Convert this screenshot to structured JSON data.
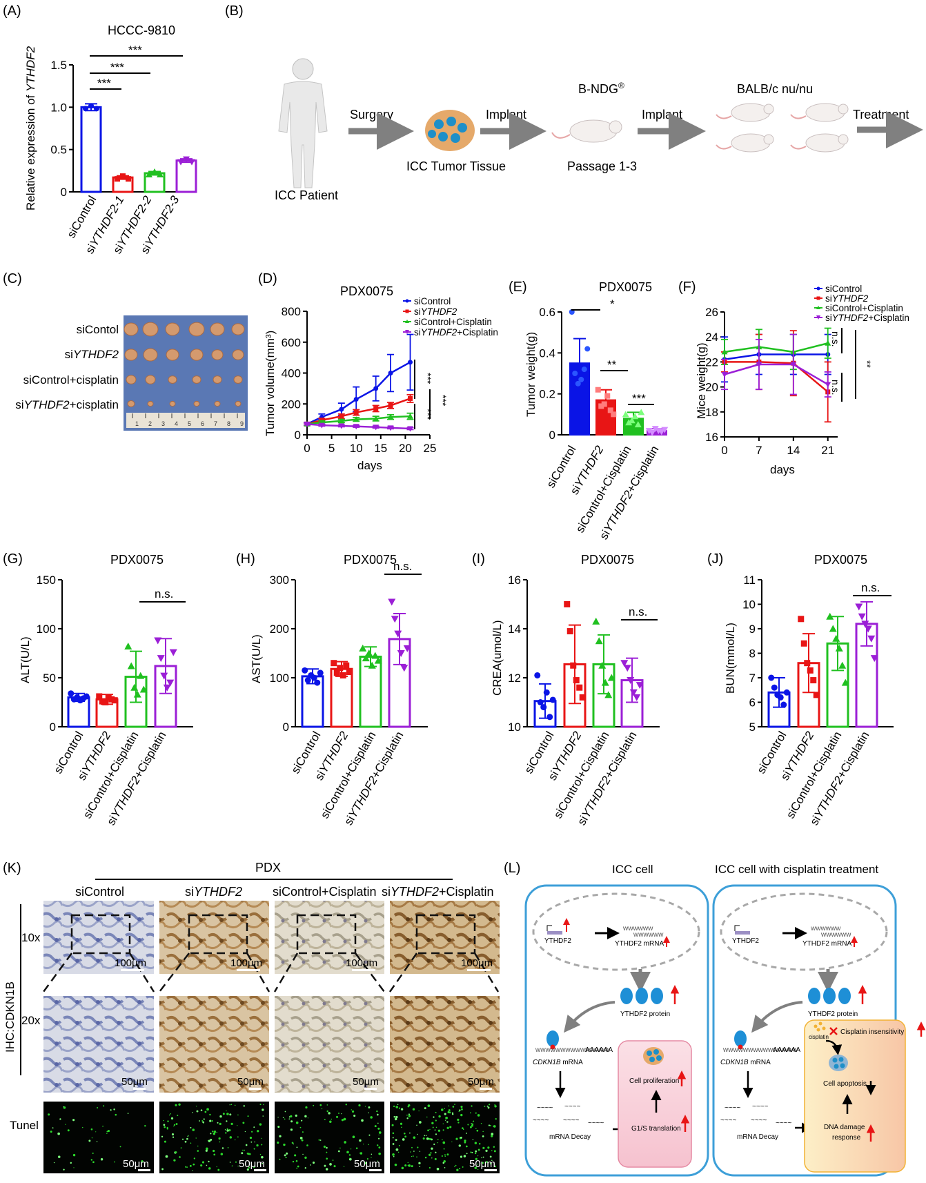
{
  "colors": {
    "blue": "#0a14e6",
    "red": "#e81515",
    "green": "#20c020",
    "purple": "#9b1fd6",
    "arrow": "#808080",
    "cell_border": "#3d9fd8",
    "apoptosis_fill": "#fdebc0",
    "apoptosis_border": "#f2b233",
    "pink": "#f8c8d4"
  },
  "panels": {
    "A": {
      "label": "(A)",
      "title": "HCCC-9810",
      "ylabel_pre": "Relative expression of ",
      "ylabel_it": "YTHDF2",
      "ytick_labels": [
        "0",
        "0.5",
        "1.0",
        "1.5"
      ],
      "sig": [
        "***",
        "***",
        "***"
      ],
      "cats": [
        {
          "pre": "siControl",
          "it": ""
        },
        {
          "pre": "si",
          "it": "YTHDF2-1"
        },
        {
          "pre": "si",
          "it": "YTHDF2-2"
        },
        {
          "pre": "si",
          "it": "YTHDF2-3"
        }
      ]
    },
    "B": {
      "label": "(B)",
      "patient": "ICC Patient",
      "surgery": "Surgery",
      "tissue": "ICC Tumor Tissue",
      "implant1": "Implant",
      "mouse1": "B-NDG",
      "mouse1_sup": "®",
      "passage": "Passage 1-3",
      "implant2": "Implant",
      "mouse2": "BALB/c nu/nu",
      "treatment": "Treatment"
    },
    "C": {
      "label": "(C)",
      "rows": [
        {
          "pre": "siContol",
          "it": "",
          "post": ""
        },
        {
          "pre": "si",
          "it": "YTHDF2",
          "post": ""
        },
        {
          "pre": "siControl+cisplatin",
          "it": "",
          "post": ""
        },
        {
          "pre": "si",
          "it": "YTHDF2",
          "post": "+cisplatin"
        }
      ],
      "ruler": [
        "1",
        "2",
        "3",
        "4",
        "5",
        "6",
        "7",
        "8",
        "9"
      ]
    },
    "D": {
      "label": "(D)",
      "title": "PDX0075",
      "ylabel": "Tumor volume(mm³)",
      "xlabel": "days",
      "xtick_labels": [
        "0",
        "5",
        "10",
        "15",
        "20",
        "25"
      ],
      "ytick_labels": [
        "0",
        "200",
        "400",
        "600",
        "800"
      ],
      "sig": [
        "***",
        "***",
        "***"
      ],
      "legend": [
        {
          "pre": "siControl",
          "it": "",
          "post": ""
        },
        {
          "pre": "si",
          "it": "YTHDF2",
          "post": ""
        },
        {
          "pre": "siControl+Cisplatin",
          "it": "",
          "post": ""
        },
        {
          "pre": "si",
          "it": "YTHDF2",
          "post": "+Cisplatin"
        }
      ]
    },
    "E": {
      "label": "(E)",
      "title": "PDX0075",
      "ylabel": "Tumor weight(g)",
      "ytick_labels": [
        "0",
        "0.2",
        "0.4",
        "0.6"
      ],
      "sig": [
        "*",
        "**",
        "***"
      ]
    },
    "F": {
      "label": "(F)",
      "ylabel": "Mice weight(g)",
      "xlabel": "days",
      "xtick_labels": [
        "0",
        "7",
        "14",
        "21"
      ],
      "ytick_labels": [
        "16",
        "18",
        "20",
        "22",
        "24",
        "26"
      ],
      "sig": [
        "n.s.",
        "n.s.",
        "**"
      ],
      "legend": [
        {
          "pre": "siControl",
          "it": "",
          "post": ""
        },
        {
          "pre": "si",
          "it": "YTHDF2",
          "post": ""
        },
        {
          "pre": "siControl+Cisplatin",
          "it": "",
          "post": ""
        },
        {
          "pre": "si",
          "it": "YTHDF2",
          "post": "+Cisplatin"
        }
      ]
    },
    "G": {
      "label": "(G)",
      "title": "PDX0075",
      "ylabel": "ALT(U/L)",
      "ytick_labels": [
        "0",
        "50",
        "100",
        "150"
      ],
      "sig": "n.s."
    },
    "H": {
      "label": "(H)",
      "title": "PDX0075",
      "ylabel": "AST(U/L)",
      "ytick_labels": [
        "0",
        "100",
        "200",
        "300"
      ],
      "sig": "n.s."
    },
    "I": {
      "label": "(I)",
      "title": "PDX0075",
      "ylabel": "CREA(umol/L)",
      "ytick_labels": [
        "10",
        "12",
        "14",
        "16"
      ],
      "sig": "n.s."
    },
    "J": {
      "label": "(J)",
      "title": "PDX0075",
      "ylabel": "BUN(mmol/L)",
      "ytick_labels": [
        "5",
        "6",
        "7",
        "8",
        "9",
        "10",
        "11"
      ],
      "sig": "n.s."
    },
    "group_cats": [
      {
        "pre": "siControl",
        "it": "",
        "post": ""
      },
      {
        "pre": "si",
        "it": "YTHDF2",
        "post": ""
      },
      {
        "pre": "siControl+Cisplatin",
        "it": "",
        "post": ""
      },
      {
        "pre": "si",
        "it": "YTHDF2",
        "post": "+Cisplatin"
      }
    ],
    "K": {
      "label": "(K)",
      "header": "PDX",
      "cols": [
        {
          "pre": "siControl",
          "it": "",
          "post": ""
        },
        {
          "pre": "si",
          "it": "YTHDF2",
          "post": ""
        },
        {
          "pre": "siControl+Cisplatin",
          "it": "",
          "post": ""
        },
        {
          "pre": "si",
          "it": "YTHDF2",
          "post": "+Cisplatin"
        }
      ],
      "side_label": "IHC:CDKN1B",
      "mag1": "10x",
      "mag2": "20x",
      "tunel": "Tunel",
      "scale1": "100μm",
      "scale2": "50μm",
      "scale3": "50μm"
    },
    "L": {
      "label": "(L)",
      "title1": "ICC cell",
      "title2": "ICC cell with cisplatin treatment",
      "gene": "YTHDF2",
      "mrna": "YTHDF2 mRNA",
      "protein": "YTHDF2 protein",
      "cdkn_it": "CDKN1B",
      "cdkn_post": " mRNA",
      "polya": "AAAAAA",
      "decay": "mRNA Decay",
      "proliferation": "Cell proliferation",
      "g1s": "G1/S translation",
      "cisplatin": "cisplatin",
      "insens": "Cisplatin insensitivity",
      "apoptosis": "Cell apoptosis",
      "dna1": "DNA damage",
      "dna2": "response"
    }
  },
  "chart_data": [
    {
      "panel": "A",
      "type": "bar",
      "categories": [
        "siControl",
        "siYTHDF2-1",
        "siYTHDF2-2",
        "siYTHDF2-3"
      ],
      "values": [
        1.0,
        0.17,
        0.22,
        0.37
      ],
      "errors": [
        0.04,
        0.02,
        0.02,
        0.02
      ],
      "colors": [
        "#0a14e6",
        "#e81515",
        "#20c020",
        "#9b1fd6"
      ],
      "ylim": [
        0,
        1.5
      ],
      "yticks": [
        0,
        0.5,
        1.0,
        1.5
      ]
    },
    {
      "panel": "D",
      "type": "line",
      "x": [
        0,
        3,
        7,
        10,
        14,
        17,
        21
      ],
      "xlim": [
        0,
        25
      ],
      "ylim": [
        0,
        800
      ],
      "xticks": [
        0,
        5,
        10,
        15,
        20,
        25
      ],
      "yticks": [
        0,
        200,
        400,
        600,
        800
      ],
      "series": [
        {
          "name": "siControl",
          "color": "#0a14e6",
          "values": [
            70,
            115,
            165,
            230,
            300,
            400,
            470
          ],
          "errors": [
            10,
            20,
            40,
            80,
            80,
            120,
            180
          ]
        },
        {
          "name": "siYTHDF2",
          "color": "#e81515",
          "values": [
            70,
            95,
            120,
            145,
            170,
            190,
            235
          ],
          "errors": [
            10,
            12,
            15,
            18,
            20,
            20,
            25
          ]
        },
        {
          "name": "siControl+Cisplatin",
          "color": "#20c020",
          "values": [
            70,
            80,
            90,
            100,
            105,
            115,
            120
          ],
          "errors": [
            8,
            10,
            10,
            12,
            15,
            15,
            20
          ]
        },
        {
          "name": "siYTHDF2+Cisplatin",
          "color": "#9b1fd6",
          "values": [
            70,
            62,
            58,
            55,
            50,
            45,
            40
          ],
          "errors": [
            6,
            6,
            6,
            6,
            6,
            6,
            6
          ]
        }
      ]
    },
    {
      "panel": "E",
      "type": "bar",
      "categories": [
        "siControl",
        "siYTHDF2",
        "siControl+Cisplatin",
        "siYTHDF2+Cisplatin"
      ],
      "values": [
        0.35,
        0.17,
        0.08,
        0.02
      ],
      "errors": [
        0.12,
        0.05,
        0.03,
        0.01
      ],
      "colors": [
        "#0a14e6",
        "#e81515",
        "#20c020",
        "#9b1fd6"
      ],
      "ylim": [
        0,
        0.6
      ],
      "yticks": [
        0,
        0.2,
        0.4,
        0.6
      ],
      "points": [
        [
          0.6,
          0.3,
          0.25,
          0.27,
          0.32,
          0.42
        ],
        [
          0.22,
          0.14,
          0.15,
          0.19,
          0.12,
          0.1
        ],
        [
          0.1,
          0.06,
          0.07,
          0.09,
          0.05,
          0.11
        ],
        [
          0.02,
          0.01,
          0.03,
          0.02,
          0.015,
          0.025
        ]
      ]
    },
    {
      "panel": "F",
      "type": "line",
      "x": [
        0,
        7,
        14,
        21
      ],
      "xlim": [
        0,
        23
      ],
      "ylim": [
        16,
        26
      ],
      "xticks": [
        0,
        7,
        14,
        21
      ],
      "yticks": [
        16,
        18,
        20,
        22,
        24,
        26
      ],
      "series": [
        {
          "name": "siControl",
          "color": "#0a14e6",
          "values": [
            22.2,
            22.6,
            22.6,
            22.6
          ],
          "errors": [
            1.8,
            1.6,
            1.6,
            1.6
          ]
        },
        {
          "name": "siYTHDF2",
          "color": "#e81515",
          "values": [
            22.0,
            22.0,
            21.9,
            19.6
          ],
          "errors": [
            0.8,
            2.2,
            2.6,
            2.4
          ]
        },
        {
          "name": "siControl+Cisplatin",
          "color": "#20c020",
          "values": [
            22.8,
            23.2,
            22.8,
            23.5
          ],
          "errors": [
            1.0,
            1.4,
            1.4,
            1.2
          ]
        },
        {
          "name": "siYTHDF2+Cisplatin",
          "color": "#9b1fd6",
          "values": [
            21.0,
            21.8,
            21.8,
            20.2
          ],
          "errors": [
            1.2,
            2.0,
            2.4,
            1.0
          ]
        }
      ]
    },
    {
      "panel": "G",
      "type": "bar",
      "categories": [
        "siControl",
        "siYTHDF2",
        "siControl+Cisplatin",
        "siYTHDF2+Cisplatin"
      ],
      "values": [
        30,
        28,
        51,
        62
      ],
      "errors": [
        4,
        5,
        26,
        28
      ],
      "ylim": [
        0,
        150
      ],
      "yticks": [
        0,
        50,
        100,
        150
      ],
      "points": [
        [
          34,
          28,
          30,
          27,
          29,
          31
        ],
        [
          31,
          26,
          25,
          30,
          28,
          27
        ],
        [
          82,
          62,
          40,
          33,
          52,
          38
        ],
        [
          88,
          70,
          52,
          40,
          45,
          76
        ]
      ]
    },
    {
      "panel": "H",
      "type": "bar",
      "categories": [
        "siControl",
        "siYTHDF2",
        "siControl+Cisplatin",
        "siYTHDF2+Cisplatin"
      ],
      "values": [
        103,
        118,
        143,
        179
      ],
      "errors": [
        15,
        15,
        20,
        52
      ],
      "ylim": [
        0,
        300
      ],
      "yticks": [
        0,
        100,
        200,
        300
      ],
      "points": [
        [
          115,
          95,
          105,
          100,
          90,
          110
        ],
        [
          130,
          110,
          120,
          105,
          125,
          112
        ],
        [
          160,
          140,
          150,
          125,
          145,
          135
        ],
        [
          255,
          220,
          190,
          150,
          120,
          160
        ]
      ]
    },
    {
      "panel": "I",
      "type": "bar",
      "categories": [
        "siControl",
        "siYTHDF2",
        "siControl+Cisplatin",
        "siYTHDF2+Cisplatin"
      ],
      "values": [
        11.05,
        12.55,
        12.55,
        11.9
      ],
      "errors": [
        0.7,
        1.6,
        1.2,
        0.9
      ],
      "ylim": [
        10,
        16
      ],
      "yticks": [
        10,
        12,
        14,
        16
      ],
      "points": [
        [
          12.1,
          11.0,
          10.8,
          11.4,
          10.4,
          11.1
        ],
        [
          15.0,
          13.9,
          12.5,
          11.9,
          11.6,
          11.2
        ],
        [
          14.3,
          13.5,
          12.5,
          11.8,
          11.3,
          12.0
        ],
        [
          12.6,
          12.4,
          11.9,
          11.4,
          11.2,
          11.7
        ]
      ]
    },
    {
      "panel": "J",
      "type": "bar",
      "categories": [
        "siControl",
        "siYTHDF2",
        "siControl+Cisplatin",
        "siYTHDF2+Cisplatin"
      ],
      "values": [
        6.4,
        7.6,
        8.4,
        9.2
      ],
      "errors": [
        0.6,
        1.2,
        1.1,
        0.9
      ],
      "ylim": [
        5,
        11
      ],
      "yticks": [
        5,
        6,
        7,
        8,
        9,
        10,
        11
      ],
      "points": [
        [
          7.0,
          6.6,
          6.3,
          6.2,
          5.9,
          6.4
        ],
        [
          9.4,
          8.4,
          7.6,
          7.3,
          6.9,
          6.3
        ],
        [
          9.5,
          9.0,
          8.6,
          8.2,
          7.5,
          6.8
        ],
        [
          9.9,
          9.5,
          9.2,
          9.0,
          8.6,
          7.8
        ]
      ]
    }
  ]
}
